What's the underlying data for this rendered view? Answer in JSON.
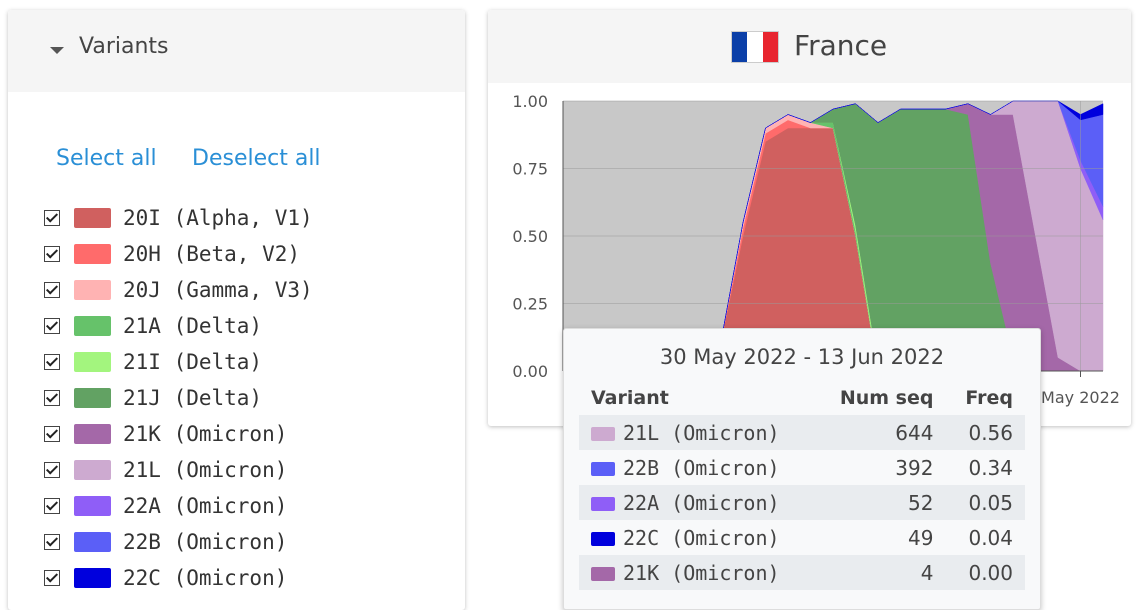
{
  "sidebar": {
    "title": "Variants",
    "select_all": "Select all",
    "deselect_all": "Deselect all",
    "variants": [
      {
        "label": "20I (Alpha, V1)",
        "color": "#d0605f"
      },
      {
        "label": "20H (Beta, V2)",
        "color": "#ff6b6b"
      },
      {
        "label": "20J (Gamma, V3)",
        "color": "#ffb3b3"
      },
      {
        "label": "21A (Delta)",
        "color": "#66c26a"
      },
      {
        "label": "21I (Delta)",
        "color": "#a3f57e"
      },
      {
        "label": "21J (Delta)",
        "color": "#62a263"
      },
      {
        "label": "21K (Omicron)",
        "color": "#a468a8"
      },
      {
        "label": "21L (Omicron)",
        "color": "#cdaad0"
      },
      {
        "label": "22A (Omicron)",
        "color": "#8f5ef7"
      },
      {
        "label": "22B (Omicron)",
        "color": "#5b5ff7"
      },
      {
        "label": "22C (Omicron)",
        "color": "#0000dd"
      }
    ]
  },
  "panel": {
    "title": "France"
  },
  "chart_data": {
    "type": "area",
    "stacked": true,
    "grid": true,
    "x": [
      0,
      1,
      2,
      3,
      4,
      5,
      6,
      7,
      8,
      9,
      10,
      11,
      12,
      13,
      14,
      15,
      16,
      17,
      18,
      19,
      20,
      21,
      22,
      23,
      24
    ],
    "xlim": [
      0,
      24
    ],
    "xticks": [
      {
        "value": 23,
        "label": "May 2022"
      }
    ],
    "ylim": [
      0,
      1
    ],
    "yticks": [
      {
        "value": 0,
        "label": "0.00"
      },
      0.25,
      {
        "value": 0.5,
        "label": "0.50"
      },
      0.75,
      {
        "value": 1,
        "label": "1.00"
      }
    ],
    "series": [
      {
        "name": "20I (Alpha, V1)",
        "color": "#d0605f",
        "values": [
          0,
          0,
          0,
          0,
          0,
          0,
          0,
          0.1,
          0.5,
          0.85,
          0.9,
          0.9,
          0.9,
          0.5,
          0,
          0,
          0,
          0,
          0,
          0,
          0,
          0,
          0,
          0,
          0
        ]
      },
      {
        "name": "20H (Beta, V2)",
        "color": "#ff6b6b",
        "values": [
          0,
          0,
          0,
          0,
          0,
          0,
          0,
          0,
          0.03,
          0.03,
          0.03,
          0,
          0,
          0,
          0,
          0,
          0,
          0,
          0,
          0,
          0,
          0,
          0,
          0,
          0
        ]
      },
      {
        "name": "20J (Gamma, V3)",
        "color": "#ffb3b3",
        "values": [
          0,
          0,
          0,
          0,
          0,
          0,
          0,
          0,
          0.02,
          0.02,
          0.02,
          0.02,
          0,
          0,
          0,
          0,
          0,
          0,
          0,
          0,
          0,
          0,
          0,
          0,
          0
        ]
      },
      {
        "name": "21A (Delta)",
        "color": "#66c26a",
        "values": [
          0,
          0,
          0,
          0,
          0,
          0,
          0,
          0,
          0,
          0,
          0,
          0,
          0.02,
          0.02,
          0,
          0,
          0,
          0,
          0,
          0,
          0,
          0,
          0,
          0,
          0
        ]
      },
      {
        "name": "21I (Delta)",
        "color": "#a3f57e",
        "values": [
          0,
          0,
          0,
          0,
          0,
          0,
          0,
          0,
          0,
          0,
          0,
          0,
          0,
          0.02,
          0.02,
          0,
          0,
          0,
          0,
          0,
          0,
          0,
          0,
          0,
          0
        ]
      },
      {
        "name": "21J (Delta)",
        "color": "#62a263",
        "values": [
          0,
          0,
          0,
          0,
          0,
          0,
          0,
          0,
          0,
          0,
          0,
          0,
          0.05,
          0.45,
          0.9,
          0.97,
          0.97,
          0.97,
          0.95,
          0.4,
          0.05,
          0,
          0,
          0,
          0
        ]
      },
      {
        "name": "21K (Omicron)",
        "color": "#a468a8",
        "values": [
          0,
          0,
          0,
          0,
          0,
          0,
          0,
          0,
          0,
          0,
          0,
          0,
          0,
          0,
          0,
          0,
          0,
          0,
          0.04,
          0.55,
          0.9,
          0.5,
          0.05,
          0,
          0
        ]
      },
      {
        "name": "21L (Omicron)",
        "color": "#cdaad0",
        "values": [
          0,
          0,
          0,
          0,
          0,
          0,
          0,
          0,
          0,
          0,
          0,
          0,
          0,
          0,
          0,
          0,
          0,
          0,
          0,
          0,
          0.05,
          0.5,
          0.95,
          0.75,
          0.56
        ]
      },
      {
        "name": "22A (Omicron)",
        "color": "#8f5ef7",
        "values": [
          0,
          0,
          0,
          0,
          0,
          0,
          0,
          0,
          0,
          0,
          0,
          0,
          0,
          0,
          0,
          0,
          0,
          0,
          0,
          0,
          0,
          0,
          0,
          0.03,
          0.05
        ]
      },
      {
        "name": "22B (Omicron)",
        "color": "#5b5ff7",
        "values": [
          0,
          0,
          0,
          0,
          0,
          0,
          0,
          0,
          0,
          0,
          0,
          0,
          0,
          0,
          0,
          0,
          0,
          0,
          0,
          0,
          0,
          0,
          0,
          0.15,
          0.34
        ]
      },
      {
        "name": "22C (Omicron)",
        "color": "#0000dd",
        "values": [
          0,
          0,
          0,
          0,
          0,
          0,
          0,
          0,
          0,
          0,
          0,
          0,
          0,
          0,
          0,
          0,
          0,
          0,
          0,
          0,
          0,
          0,
          0,
          0.02,
          0.04
        ]
      }
    ]
  },
  "tooltip": {
    "title": "30 May 2022 - 13 Jun 2022",
    "columns": [
      "Variant",
      "Num seq",
      "Freq"
    ],
    "rows": [
      {
        "color": "#cdaad0",
        "variant": "21L (Omicron)",
        "num_seq": 644,
        "freq": "0.56"
      },
      {
        "color": "#5b5ff7",
        "variant": "22B (Omicron)",
        "num_seq": 392,
        "freq": "0.34"
      },
      {
        "color": "#8f5ef7",
        "variant": "22A (Omicron)",
        "num_seq": 52,
        "freq": "0.05"
      },
      {
        "color": "#0000dd",
        "variant": "22C (Omicron)",
        "num_seq": 49,
        "freq": "0.04"
      },
      {
        "color": "#a468a8",
        "variant": "21K (Omicron)",
        "num_seq": 4,
        "freq": "0.00"
      }
    ]
  }
}
